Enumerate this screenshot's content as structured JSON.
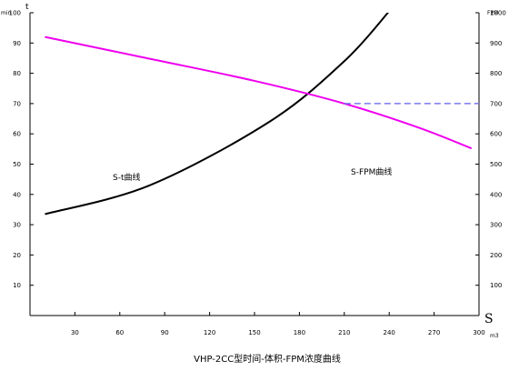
{
  "chart_data": {
    "type": "line",
    "title": "VHP-2CC型时间-体积-FPM浓度曲线",
    "x": {
      "label": "S",
      "unit": "m3",
      "range": [
        0,
        300
      ],
      "ticks": [
        30,
        60,
        90,
        120,
        150,
        180,
        210,
        240,
        270,
        300
      ]
    },
    "y_left": {
      "label": "t",
      "unit": "min",
      "range": [
        0,
        100
      ],
      "ticks": [
        10,
        20,
        30,
        40,
        50,
        60,
        70,
        80,
        90,
        100
      ]
    },
    "y_right": {
      "label": "FPM",
      "range": [
        0,
        1000
      ],
      "ticks": [
        100,
        200,
        300,
        400,
        500,
        600,
        700,
        800,
        900,
        1000
      ]
    },
    "grid": false,
    "legend": "none",
    "series": [
      {
        "name": "S-t曲线",
        "axis": "left",
        "color": "#000000",
        "points": [
          [
            10,
            33.5
          ],
          [
            80,
            43
          ],
          [
            160,
            64
          ],
          [
            210,
            84
          ],
          [
            240,
            100.5
          ]
        ]
      },
      {
        "name": "S-FPM曲线",
        "axis": "right",
        "color": "#ee00ee",
        "points": [
          [
            10,
            920
          ],
          [
            80,
            848
          ],
          [
            150,
            775
          ],
          [
            210,
            700
          ],
          [
            260,
            620
          ],
          [
            295,
            552
          ]
        ]
      },
      {
        "name": "",
        "axis": "right",
        "color": "#7777ee",
        "dashed": true,
        "points": [
          [
            210,
            700
          ],
          [
            300,
            700
          ]
        ]
      }
    ]
  }
}
